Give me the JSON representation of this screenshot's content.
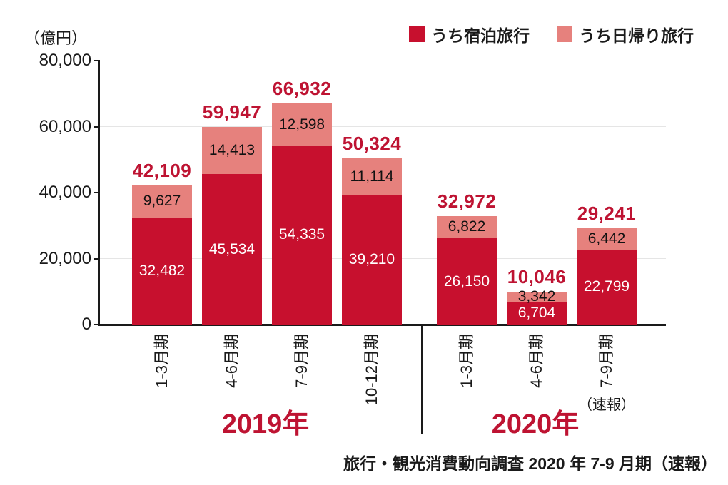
{
  "unit_label": "（億円）",
  "legend": [
    {
      "label": "うち宿泊旅行",
      "color": "#C7102E"
    },
    {
      "label": "うち日帰り旅行",
      "color": "#E6817D"
    }
  ],
  "source": "旅行・観光消費動向調査 2020 年 7-9 月期（速報）",
  "chart_data": {
    "type": "bar",
    "stacked": true,
    "title": "",
    "ylabel": "（億円）",
    "xlabel": "",
    "ylim": [
      0,
      80000
    ],
    "yticks": [
      0,
      20000,
      40000,
      60000,
      80000
    ],
    "ytick_labels": [
      "0",
      "20,000",
      "40,000",
      "60,000",
      "80,000"
    ],
    "grid": true,
    "legend_position": "top-right",
    "accent_text_color": "#BE1332",
    "groups": [
      {
        "label": "2019年",
        "categories": [
          "1-3月期",
          "4-6月期",
          "7-9月期",
          "10-12月期"
        ]
      },
      {
        "label": "2020年",
        "categories": [
          "1-3月期",
          "4-6月期",
          "7-9月期"
        ],
        "note": "（速報）"
      }
    ],
    "series": [
      {
        "name": "うち宿泊旅行",
        "color": "#C7102E",
        "values": [
          32482,
          45534,
          54335,
          39210,
          26150,
          6704,
          22799
        ],
        "labels": [
          "32,482",
          "45,534",
          "54,335",
          "39,210",
          "26,150",
          "6,704",
          "22,799"
        ]
      },
      {
        "name": "うち日帰り旅行",
        "color": "#E6817D",
        "values": [
          9627,
          14413,
          12598,
          11114,
          6822,
          3342,
          6442
        ],
        "labels": [
          "9,627",
          "14,413",
          "12,598",
          "11,114",
          "6,822",
          "3,342",
          "6,442"
        ]
      }
    ],
    "totals": [
      42109,
      59947,
      66932,
      50324,
      32972,
      10046,
      29241
    ],
    "total_labels": [
      "42,109",
      "59,947",
      "66,932",
      "50,324",
      "32,972",
      "10,046",
      "29,241"
    ]
  }
}
